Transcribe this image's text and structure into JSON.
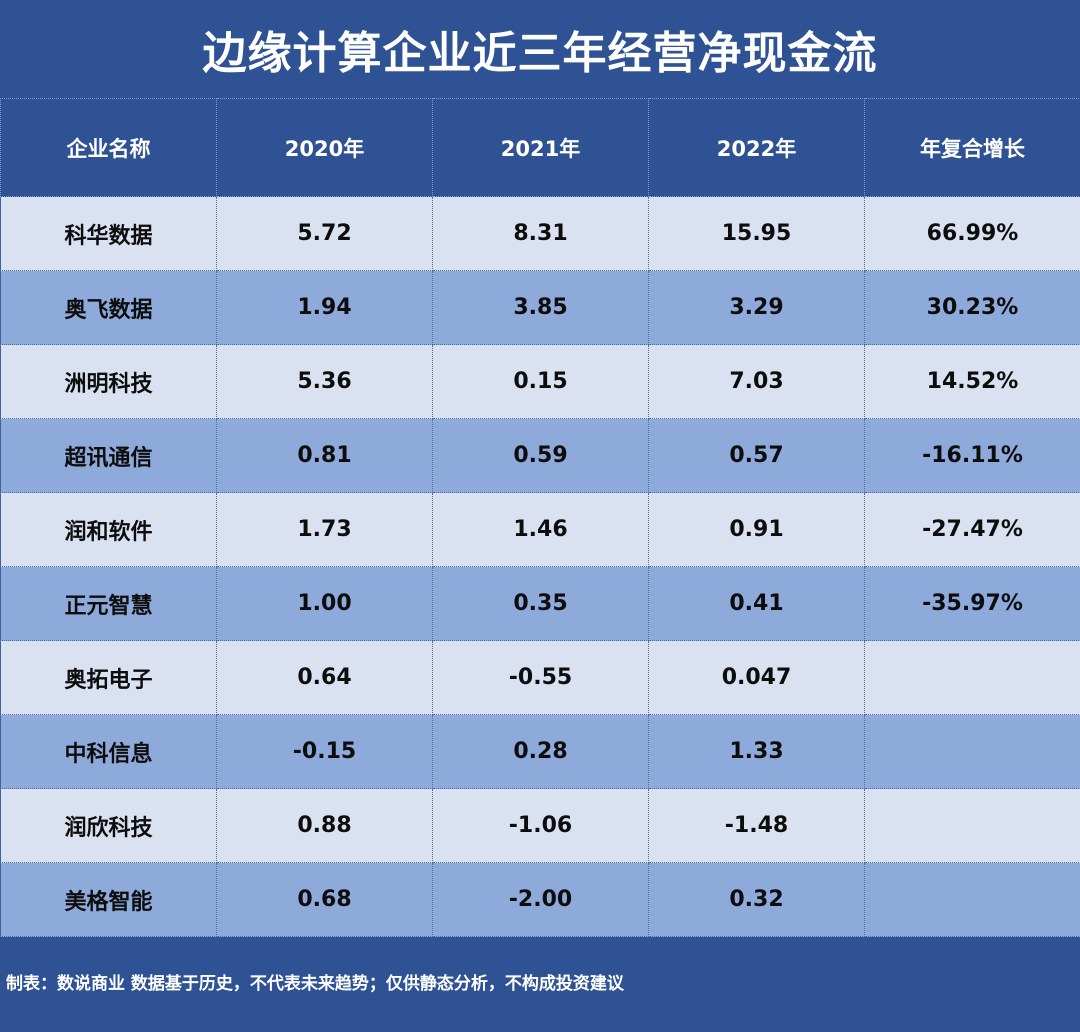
{
  "chart_data": {
    "type": "table",
    "title": "边缘计算企业近三年经营净现金流",
    "columns": [
      "企业名称",
      "2020年",
      "2021年",
      "2022年",
      "年复合增长"
    ],
    "rows": [
      [
        "科华数据",
        "5.72",
        "8.31",
        "15.95",
        "66.99%"
      ],
      [
        "奥飞数据",
        "1.94",
        "3.85",
        "3.29",
        "30.23%"
      ],
      [
        "洲明科技",
        "5.36",
        "0.15",
        "7.03",
        "14.52%"
      ],
      [
        "超讯通信",
        "0.81",
        "0.59",
        "0.57",
        "-16.11%"
      ],
      [
        "润和软件",
        "1.73",
        "1.46",
        "0.91",
        "-27.47%"
      ],
      [
        "正元智慧",
        "1.00",
        "0.35",
        "0.41",
        "-35.97%"
      ],
      [
        "奥拓电子",
        "0.64",
        "-0.55",
        "0.047",
        ""
      ],
      [
        "中科信息",
        "-0.15",
        "0.28",
        "1.33",
        ""
      ],
      [
        "润欣科技",
        "0.88",
        "-1.06",
        "-1.48",
        ""
      ],
      [
        "美格智能",
        "0.68",
        "-2.00",
        "0.32",
        ""
      ]
    ],
    "footer": "制表：数说商业  数据基于历史，不代表未来趋势；仅供静态分析，不构成投资建议"
  },
  "colors": {
    "background": "#2f5294",
    "header_text": "#ffffff",
    "row_light": "#dae2f1",
    "row_dark": "#8eaadb",
    "cell_text": "#0d0d0d"
  }
}
